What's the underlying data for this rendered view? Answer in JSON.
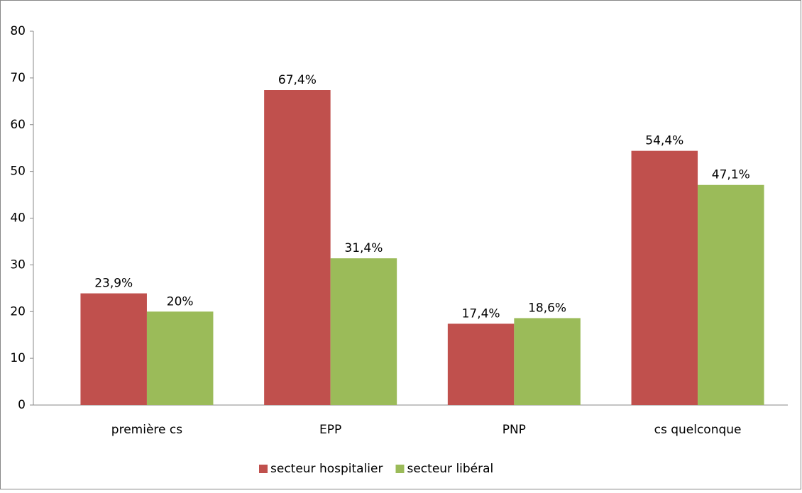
{
  "chart_data": {
    "type": "bar",
    "categories": [
      "première cs",
      "EPP",
      "PNP",
      "cs quelconque"
    ],
    "series": [
      {
        "name": "secteur hospitalier",
        "color": "#c0504d",
        "values": [
          23.9,
          67.4,
          17.4,
          54.4
        ],
        "value_labels": [
          "23,9%",
          "67,4%",
          "17,4%",
          "54,4%"
        ]
      },
      {
        "name": "secteur libéral",
        "color": "#9bbb59",
        "values": [
          20,
          31.4,
          18.6,
          47.1
        ],
        "value_labels": [
          "20%",
          "31,4%",
          "18,6%",
          "47,1%"
        ]
      }
    ],
    "ylim": [
      0,
      80
    ],
    "yticks": [
      0,
      10,
      20,
      30,
      40,
      50,
      60,
      70,
      80
    ],
    "grid": false,
    "legend": "bottom"
  }
}
